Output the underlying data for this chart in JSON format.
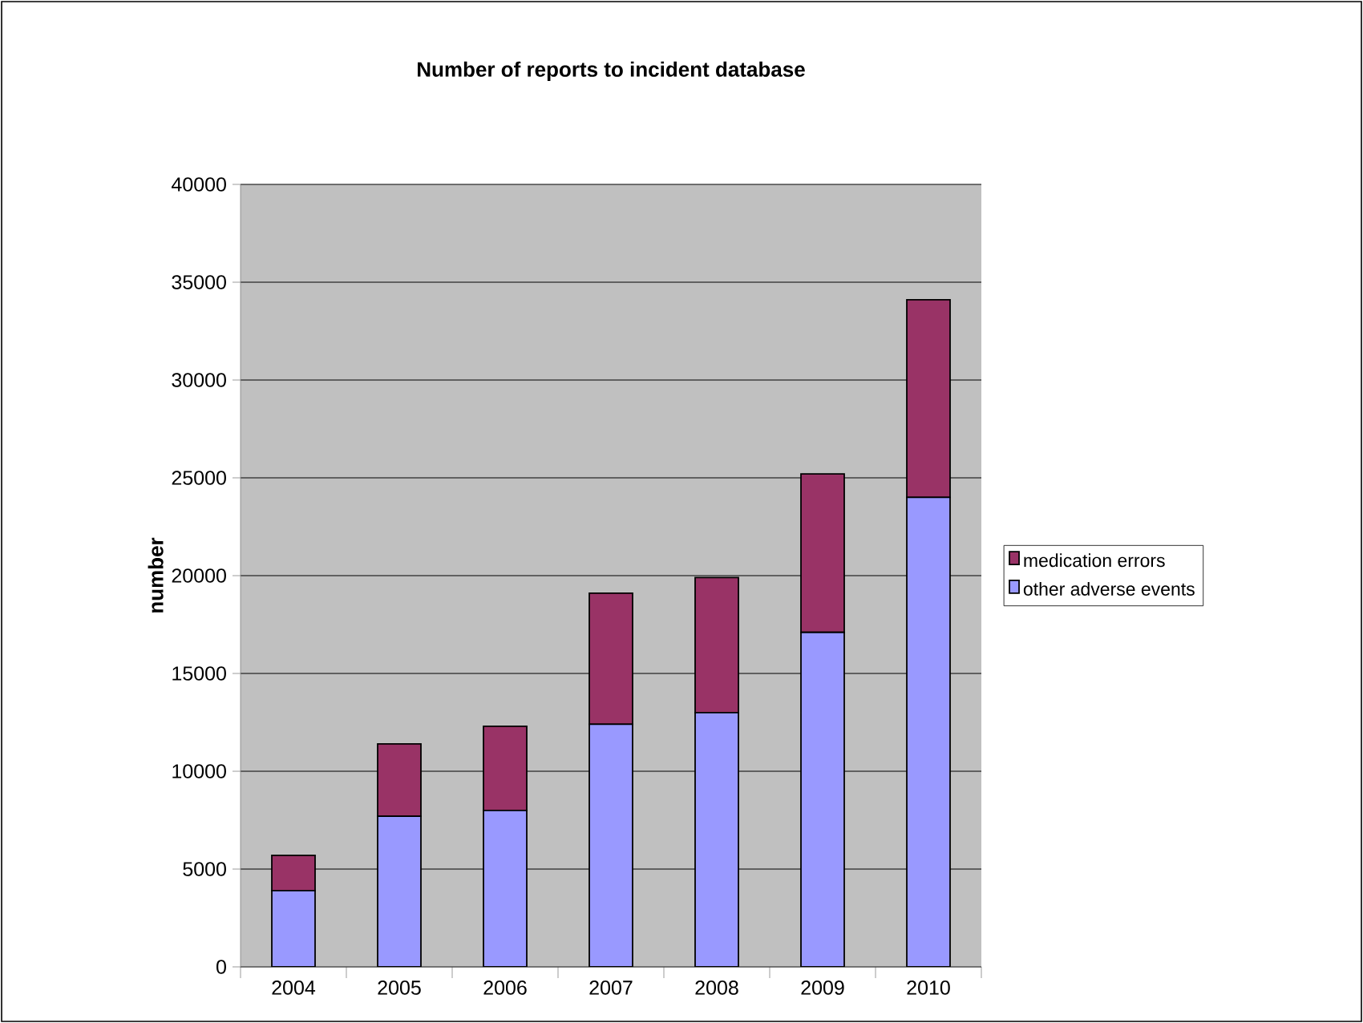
{
  "chart_data": {
    "type": "bar",
    "title": "Number of reports to incident database",
    "ylabel": "number",
    "categories": [
      "2004",
      "2005",
      "2006",
      "2007",
      "2008",
      "2009",
      "2010"
    ],
    "series": [
      {
        "name": "other adverse events",
        "color": "#9999ff",
        "values": [
          3900,
          7700,
          8000,
          12400,
          13000,
          17100,
          24000
        ]
      },
      {
        "name": "medication errors",
        "color": "#993366",
        "values": [
          1800,
          3700,
          4300,
          6700,
          6900,
          8100,
          10100
        ]
      }
    ],
    "stacked": true,
    "ylim": [
      0,
      40000
    ],
    "yticks": [
      0,
      5000,
      10000,
      15000,
      20000,
      25000,
      30000,
      35000,
      40000
    ],
    "grid": "y",
    "legend": "right"
  }
}
